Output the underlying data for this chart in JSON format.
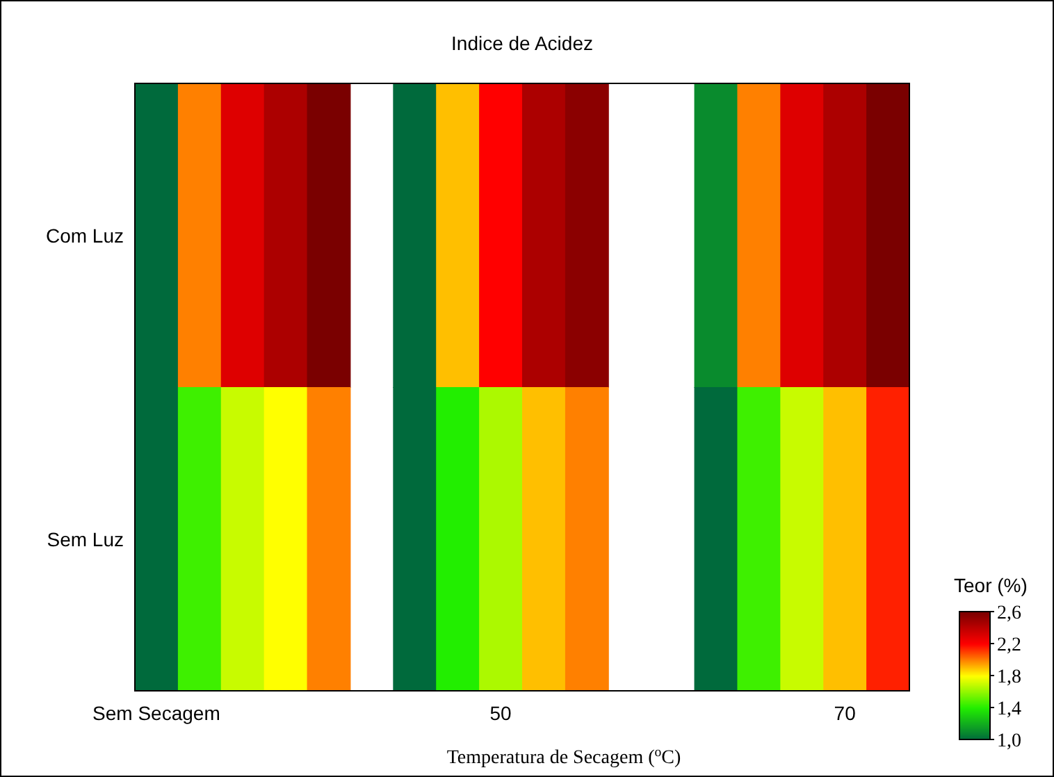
{
  "chart_data": {
    "type": "heatmap",
    "title": "Indice de Acidez",
    "xlabel": "Temperatura de Secagem ($^{o}$C)",
    "clabel": "Teor (%)",
    "categories": [
      "Sem Secagem",
      null,
      null,
      null,
      null,
      null,
      null,
      null,
      "50",
      null,
      null,
      null,
      null,
      null,
      null,
      null,
      "70",
      null
    ],
    "y_categories": [
      "Com Luz",
      "Sem Luz"
    ],
    "cells": [
      [
        1.0,
        2.0,
        2.3,
        2.45,
        2.6,
        null,
        1.0,
        1.9,
        2.2,
        2.45,
        2.55,
        null,
        null,
        1.1,
        2.0,
        2.3,
        2.45,
        2.6
      ],
      [
        1.0,
        1.45,
        1.7,
        1.8,
        2.0,
        null,
        1.0,
        1.4,
        1.65,
        1.9,
        2.0,
        null,
        null,
        1.0,
        1.45,
        1.7,
        1.9,
        2.15
      ]
    ],
    "clim": [
      1.0,
      2.6
    ],
    "cticks": [
      {
        "value": 1.0,
        "label": "1,0"
      },
      {
        "value": 1.4,
        "label": "1,4"
      },
      {
        "value": 1.8,
        "label": "1,8"
      },
      {
        "value": 2.2,
        "label": "2,2"
      },
      {
        "value": 2.6,
        "label": "2,6"
      }
    ]
  }
}
